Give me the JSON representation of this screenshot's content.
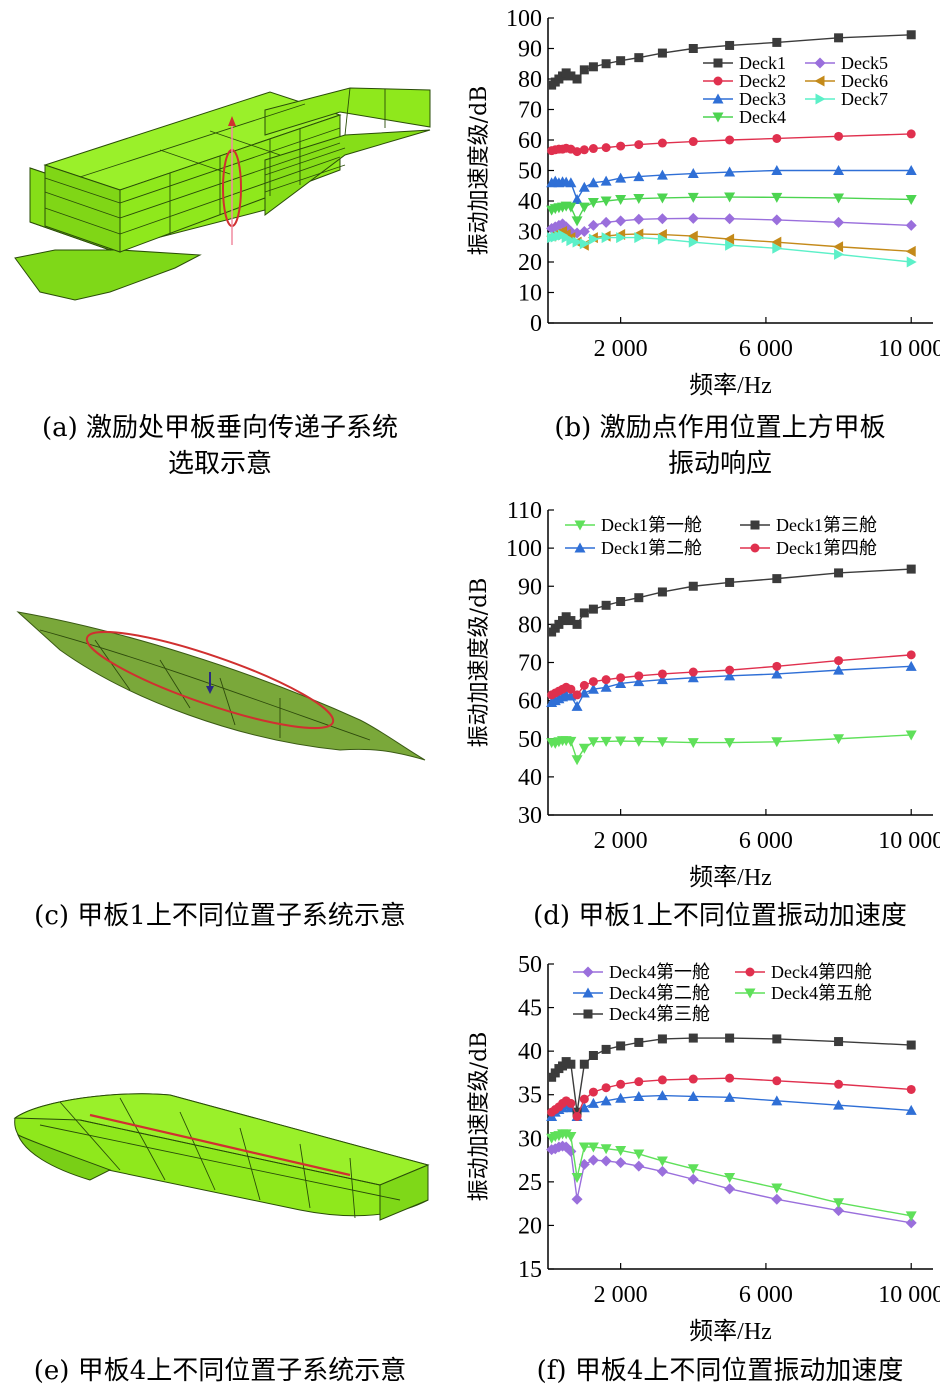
{
  "captions": {
    "a": [
      "(a) 激励处甲板垂向传递子系统",
      "选取示意"
    ],
    "b": [
      "(b) 激励点作用位置上方甲板",
      "振动响应"
    ],
    "c": [
      "(c) 甲板1上不同位置子系统示意"
    ],
    "d": [
      "(d) 甲板1上不同位置振动加速度"
    ],
    "e": [
      "(e) 甲板4上不同位置子系统示意"
    ],
    "f": [
      "(f) 甲板4上不同位置振动加速度"
    ]
  },
  "colors": {
    "hull_green": "#8fe81c",
    "hull_dark": "#6fb912",
    "plate_green": "#7aa83a",
    "ring_red": "#d03030",
    "arrow_pink": "#f08aa0"
  },
  "chart_data": [
    {
      "type": "line",
      "xlabel": "频率/Hz",
      "ylabel": "振动加速度级/dB",
      "xlim": [
        0,
        10600
      ],
      "ylim": [
        0,
        100
      ],
      "xticks": [
        2000,
        6000,
        10000
      ],
      "xtick_labels": [
        "2 000",
        "6 000",
        "10 000"
      ],
      "yticks": [
        0,
        10,
        20,
        30,
        40,
        50,
        60,
        70,
        80,
        90,
        100
      ],
      "legend": "top-right, two columns",
      "x": [
        100,
        200,
        300,
        400,
        500,
        630,
        800,
        1000,
        1250,
        1600,
        2000,
        2500,
        3150,
        4000,
        5000,
        6300,
        8000,
        10000
      ],
      "series": [
        {
          "name": "Deck1",
          "color": "#3b3b3b",
          "marker": "square",
          "values": [
            78,
            79,
            80,
            81,
            82,
            81,
            80,
            83,
            84,
            85,
            86,
            87,
            88.5,
            90,
            91,
            92,
            93.5,
            94.5
          ]
        },
        {
          "name": "Deck2",
          "color": "#e0304e",
          "marker": "circle",
          "values": [
            56.5,
            56.8,
            57,
            57,
            57.3,
            57,
            56.2,
            56.8,
            57.2,
            57.5,
            58,
            58.5,
            59,
            59.5,
            60,
            60.5,
            61.2,
            62
          ]
        },
        {
          "name": "Deck3",
          "color": "#2f6fd6",
          "marker": "triangle-up",
          "values": [
            46,
            46.5,
            46,
            46.3,
            46.2,
            46,
            40.5,
            44.5,
            46,
            46.5,
            47.5,
            48,
            48.5,
            49,
            49.5,
            50,
            50,
            50
          ]
        },
        {
          "name": "Deck4",
          "color": "#4cd450",
          "marker": "triangle-down",
          "values": [
            37,
            37.5,
            37.8,
            38,
            38.3,
            38,
            33.5,
            38,
            39.5,
            40,
            40.5,
            40.8,
            41,
            41.2,
            41.3,
            41.2,
            41,
            40.5
          ]
        },
        {
          "name": "Deck5",
          "color": "#9a6fdc",
          "marker": "diamond",
          "values": [
            31,
            31.5,
            32,
            32.5,
            31.5,
            30,
            29.5,
            30,
            32,
            33,
            33.5,
            34,
            34.2,
            34.3,
            34.2,
            33.8,
            33,
            32
          ]
        },
        {
          "name": "Deck6",
          "color": "#c48a1a",
          "marker": "triangle-left",
          "values": [
            28.5,
            29,
            29.5,
            30,
            29,
            28,
            26.5,
            25.5,
            28,
            28.5,
            29,
            29.2,
            29,
            28.5,
            27.5,
            26.5,
            25,
            23.5
          ]
        },
        {
          "name": "Deck7",
          "color": "#5cf0c8",
          "marker": "triangle-right",
          "values": [
            28,
            28.2,
            28.5,
            28.8,
            28,
            27,
            26.5,
            26,
            27.5,
            28,
            28,
            28,
            27.5,
            26.5,
            25.5,
            24.5,
            22.5,
            20
          ]
        }
      ]
    },
    {
      "type": "line",
      "xlabel": "频率/Hz",
      "ylabel": "振动加速度级/dB",
      "xlim": [
        0,
        10600
      ],
      "ylim": [
        30,
        110
      ],
      "xticks": [
        2000,
        6000,
        10000
      ],
      "xtick_labels": [
        "2 000",
        "6 000",
        "10 000"
      ],
      "yticks": [
        30,
        40,
        50,
        60,
        70,
        80,
        90,
        100,
        110
      ],
      "legend": "top, two columns",
      "x": [
        100,
        200,
        300,
        400,
        500,
        630,
        800,
        1000,
        1250,
        1600,
        2000,
        2500,
        3150,
        4000,
        5000,
        6300,
        8000,
        10000
      ],
      "series": [
        {
          "name": "Deck1第一舱",
          "color": "#5fe05a",
          "marker": "triangle-down",
          "values": [
            49,
            48.8,
            49.2,
            49.5,
            49.5,
            49.3,
            44.5,
            47.5,
            49.2,
            49.3,
            49.4,
            49.3,
            49.2,
            49,
            49,
            49.2,
            50,
            51
          ]
        },
        {
          "name": "Deck1第二舱",
          "color": "#2f6fd6",
          "marker": "triangle-up",
          "values": [
            59.5,
            60,
            60.5,
            61,
            61.5,
            61.2,
            58.5,
            62,
            63,
            63.5,
            64.5,
            65,
            65.5,
            66,
            66.5,
            67,
            68,
            69
          ]
        },
        {
          "name": "Deck1第三舱",
          "color": "#3b3b3b",
          "marker": "square",
          "values": [
            78,
            79,
            80,
            81,
            82,
            81,
            80,
            83,
            84,
            85,
            86,
            87,
            88.5,
            90,
            91,
            92,
            93.5,
            94.5
          ]
        },
        {
          "name": "Deck1第四舱",
          "color": "#e0304e",
          "marker": "circle",
          "values": [
            61.5,
            62,
            62.5,
            63,
            63.5,
            63,
            61.5,
            64,
            65,
            65.5,
            66,
            66.5,
            67,
            67.5,
            68,
            69,
            70.5,
            72
          ]
        }
      ]
    },
    {
      "type": "line",
      "xlabel": "频率/Hz",
      "ylabel": "振动加速度级/dB",
      "xlim": [
        0,
        10600
      ],
      "ylim": [
        15,
        50
      ],
      "xticks": [
        2000,
        6000,
        10000
      ],
      "xtick_labels": [
        "2 000",
        "6 000",
        "10 000"
      ],
      "yticks": [
        15,
        20,
        25,
        30,
        35,
        40,
        45,
        50
      ],
      "legend": "top, two columns",
      "x": [
        100,
        200,
        300,
        400,
        500,
        630,
        800,
        1000,
        1250,
        1600,
        2000,
        2500,
        3150,
        4000,
        5000,
        6300,
        8000,
        10000
      ],
      "series": [
        {
          "name": "Deck4第一舱",
          "color": "#9a6fdc",
          "marker": "diamond",
          "values": [
            28.7,
            28.8,
            29,
            29.1,
            29,
            28.5,
            23,
            27,
            27.5,
            27.4,
            27.2,
            26.8,
            26.2,
            25.3,
            24.2,
            23,
            21.7,
            20.3
          ]
        },
        {
          "name": "Deck4第二舱",
          "color": "#2f6fd6",
          "marker": "triangle-up",
          "values": [
            32.5,
            33,
            33.3,
            33.5,
            33.8,
            33.5,
            32.5,
            33.5,
            34,
            34.3,
            34.6,
            34.8,
            34.9,
            34.8,
            34.7,
            34.3,
            33.8,
            33.2
          ]
        },
        {
          "name": "Deck4第三舱",
          "color": "#3b3b3b",
          "marker": "square",
          "values": [
            37,
            37.5,
            38,
            38.3,
            38.8,
            38.5,
            33,
            38.5,
            39.5,
            40.2,
            40.6,
            41,
            41.4,
            41.5,
            41.5,
            41.4,
            41.1,
            40.7
          ]
        },
        {
          "name": "Deck4第四舱",
          "color": "#e0304e",
          "marker": "circle",
          "values": [
            33,
            33.3,
            33.6,
            34,
            34.3,
            34,
            32.5,
            34.5,
            35.3,
            35.8,
            36.2,
            36.5,
            36.7,
            36.8,
            36.9,
            36.6,
            36.2,
            35.6
          ]
        },
        {
          "name": "Deck4第五舱",
          "color": "#5fe05a",
          "marker": "triangle-down",
          "values": [
            30,
            30.2,
            30.3,
            30.5,
            30.5,
            30.2,
            25.5,
            29,
            29,
            28.8,
            28.6,
            28.2,
            27.4,
            26.5,
            25.5,
            24.3,
            22.6,
            21.1
          ]
        }
      ]
    }
  ]
}
